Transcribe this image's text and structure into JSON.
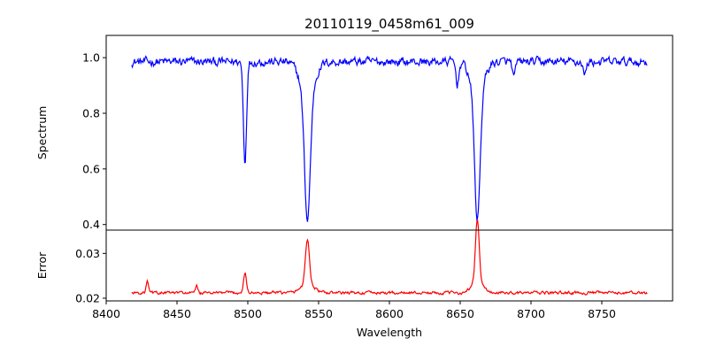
{
  "chart_data": {
    "type": "line",
    "title": "20110119_0458m61_009",
    "xlabel": "Wavelength",
    "x_range": [
      8418,
      8782
    ],
    "xlim": [
      8400,
      8800
    ],
    "x_ticks": [
      8400,
      8450,
      8500,
      8550,
      8600,
      8650,
      8700,
      8750
    ],
    "grid": false,
    "panels": [
      {
        "name": "spectrum",
        "ylabel": "Spectrum",
        "ylim": [
          0.38,
          1.08
        ],
        "y_ticks": [
          0.4,
          0.6,
          0.8,
          1.0
        ],
        "y_tick_labels": [
          "0.4",
          "0.6",
          "0.8",
          "1.0"
        ],
        "color": "#0000ff",
        "baseline": 0.985,
        "baseline_noise": 0.028,
        "features": [
          {
            "center": 8498.0,
            "depth": 0.36,
            "width": 1.1
          },
          {
            "center": 8542.1,
            "depth": 0.45,
            "width": 2.0
          },
          {
            "center": 8542.1,
            "depth": 0.12,
            "width": 5.0
          },
          {
            "center": 8662.1,
            "depth": 0.45,
            "width": 1.9
          },
          {
            "center": 8662.1,
            "depth": 0.12,
            "width": 4.5
          },
          {
            "center": 8648.0,
            "depth": 0.08,
            "width": 1.0
          },
          {
            "center": 8688.0,
            "depth": 0.06,
            "width": 1.0
          },
          {
            "center": 8738.0,
            "depth": 0.05,
            "width": 1.0
          }
        ]
      },
      {
        "name": "error",
        "ylabel": "Error",
        "ylim": [
          0.0194,
          0.0352
        ],
        "y_ticks": [
          0.02,
          0.03
        ],
        "y_tick_labels": [
          "0.02",
          "0.03"
        ],
        "color": "#ff0000",
        "baseline": 0.0212,
        "baseline_noise": 0.0006,
        "features": [
          {
            "center": 8498.0,
            "height": 0.0045,
            "width": 1.0
          },
          {
            "center": 8542.1,
            "height": 0.01,
            "width": 1.4
          },
          {
            "center": 8542.1,
            "height": 0.002,
            "width": 4.5
          },
          {
            "center": 8662.1,
            "height": 0.014,
            "width": 1.3
          },
          {
            "center": 8662.1,
            "height": 0.0025,
            "width": 4.0
          },
          {
            "center": 8429.0,
            "height": 0.0025,
            "width": 0.8
          },
          {
            "center": 8464.0,
            "height": 0.0015,
            "width": 0.8
          }
        ]
      }
    ]
  }
}
